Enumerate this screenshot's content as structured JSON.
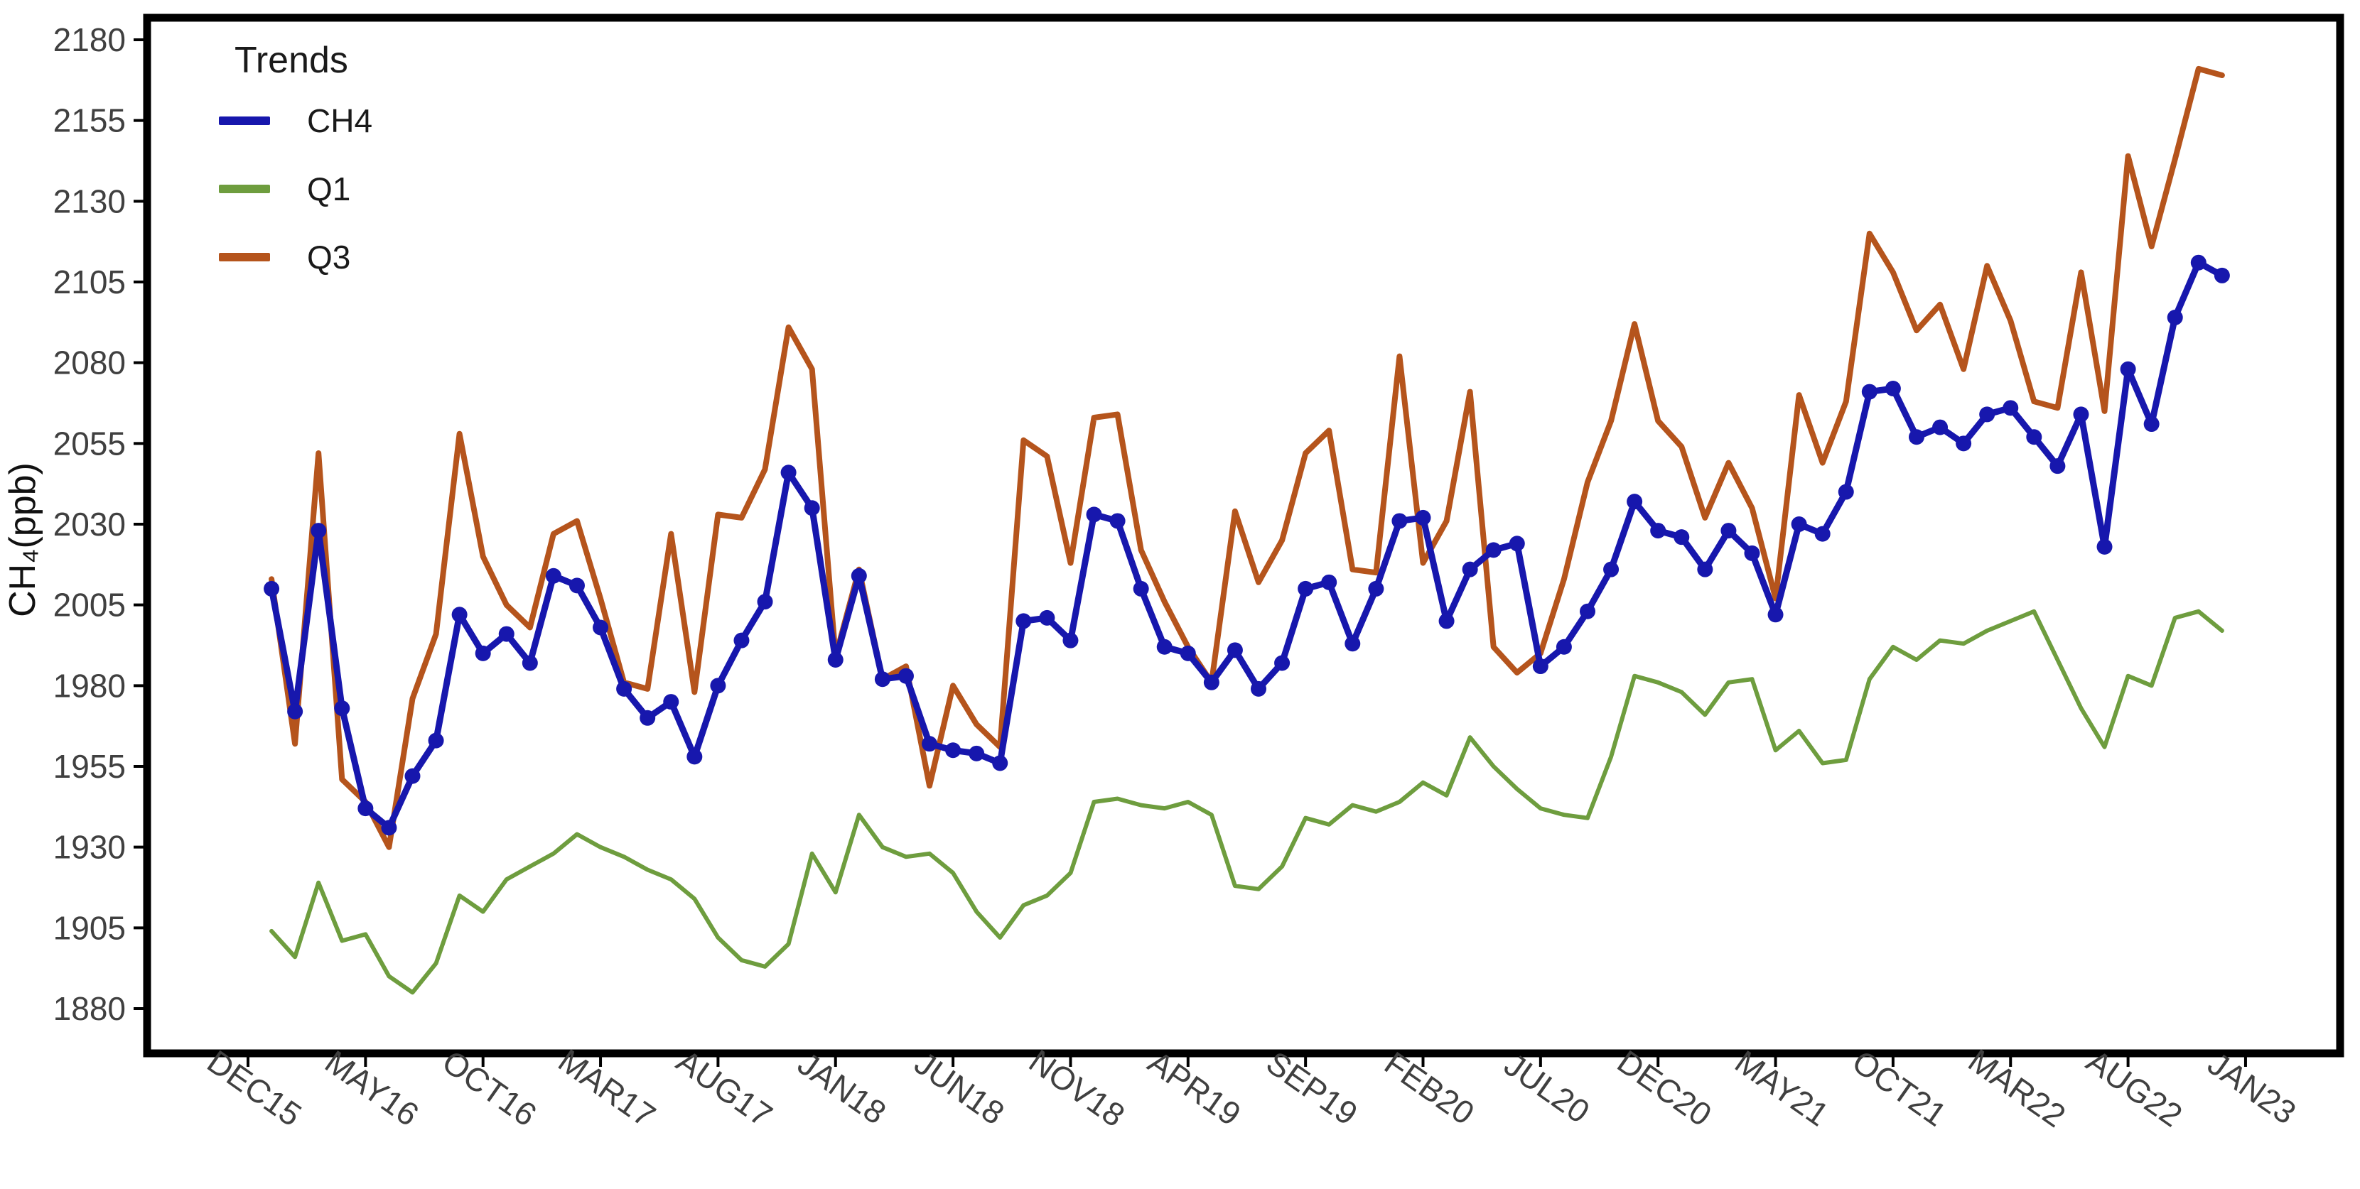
{
  "chart_data": {
    "type": "line",
    "title": "",
    "xlabel": "",
    "ylabel": "CH₄(ppb)",
    "ylim": [
      1867,
      2187
    ],
    "grid": "off",
    "legend_position": "top-left inside",
    "legend_title": "Trends",
    "y_ticks": [
      2180,
      2155,
      2130,
      2105,
      2080,
      2055,
      2030,
      2005,
      1980,
      1955,
      1930,
      1905,
      1880
    ],
    "x_axis_slots": 86,
    "x_tick_labels": [
      "DEC15",
      "MAY16",
      "OCT16",
      "MAR17",
      "AUG17",
      "JAN18",
      "JUN18",
      "NOV18",
      "APR19",
      "SEP19",
      "FEB20",
      "JUL20",
      "DEC20",
      "MAY21",
      "OCT21",
      "MAR22",
      "AUG22",
      "JAN23"
    ],
    "x_tick_slot_step": 5,
    "x": [
      "JAN16",
      "FEB16",
      "MAR16",
      "APR16",
      "MAY16",
      "JUN16",
      "JUL16",
      "AUG16",
      "SEP16",
      "OCT16",
      "NOV16",
      "DEC16",
      "JAN17",
      "FEB17",
      "MAR17",
      "APR17",
      "MAY17",
      "JUN17",
      "JUL17",
      "AUG17",
      "SEP17",
      "OCT17",
      "NOV17",
      "DEC17",
      "JAN18",
      "FEB18",
      "MAR18",
      "APR18",
      "MAY18",
      "JUN18",
      "JUL18",
      "AUG18",
      "SEP18",
      "OCT18",
      "NOV18",
      "DEC18",
      "JAN19",
      "FEB19",
      "MAR19",
      "APR19",
      "MAY19",
      "JUN19",
      "JUL19",
      "AUG19",
      "SEP19",
      "OCT19",
      "NOV19",
      "DEC19",
      "JAN20",
      "FEB20",
      "MAR20",
      "APR20",
      "MAY20",
      "JUN20",
      "JUL20",
      "AUG20",
      "SEP20",
      "OCT20",
      "NOV20",
      "DEC20",
      "JAN21",
      "FEB21",
      "MAR21",
      "APR21",
      "MAY21",
      "JUN21",
      "JUL21",
      "AUG21",
      "SEP21",
      "OCT21",
      "NOV21",
      "DEC21",
      "JAN22",
      "FEB22",
      "MAR22",
      "APR22",
      "MAY22",
      "JUN22",
      "JUL22",
      "AUG22",
      "SEP22",
      "OCT22",
      "NOV22",
      "DEC22"
    ],
    "first_data_slot": 1,
    "series": [
      {
        "name": "CH4",
        "color": "#1717ad",
        "marker": true,
        "line_width": 9,
        "values": [
          2010,
          1972,
          2028,
          1973,
          1942,
          1936,
          1952,
          1963,
          2002,
          1990,
          1996,
          1987,
          2014,
          2011,
          1998,
          1979,
          1970,
          1975,
          1958,
          1980,
          1994,
          2006,
          2046,
          2035,
          1988,
          2014,
          1982,
          1983,
          1962,
          1960,
          1959,
          1956,
          2000,
          2001,
          1994,
          2033,
          2031,
          2010,
          1992,
          1990,
          1981,
          1991,
          1979,
          1987,
          2010,
          2012,
          1993,
          2010,
          2031,
          2032,
          2000,
          2016,
          2022,
          2024,
          1986,
          1992,
          2003,
          2016,
          2037,
          2028,
          2026,
          2016,
          2028,
          2021,
          2002,
          2030,
          2027,
          2040,
          2071,
          2072,
          2057,
          2060,
          2055,
          2064,
          2066,
          2057,
          2048,
          2064,
          2023,
          2078,
          2061,
          2094,
          2111,
          2107
        ]
      },
      {
        "name": "Q1",
        "color": "#6e9d3e",
        "marker": false,
        "line_width": 6,
        "values": [
          1904,
          1896,
          1919,
          1901,
          1903,
          1890,
          1885,
          1894,
          1915,
          1910,
          1920,
          1924,
          1928,
          1934,
          1930,
          1927,
          1923,
          1920,
          1914,
          1902,
          1895,
          1893,
          1900,
          1928,
          1916,
          1940,
          1930,
          1927,
          1928,
          1922,
          1910,
          1902,
          1912,
          1915,
          1922,
          1944,
          1945,
          1943,
          1942,
          1944,
          1940,
          1918,
          1917,
          1924,
          1939,
          1937,
          1943,
          1941,
          1944,
          1950,
          1946,
          1964,
          1955,
          1948,
          1942,
          1940,
          1939,
          1958,
          1983,
          1981,
          1978,
          1971,
          1981,
          1982,
          1960,
          1966,
          1956,
          1957,
          1982,
          1992,
          1988,
          1994,
          1993,
          1997,
          2000,
          2003,
          1988,
          1973,
          1961,
          1983,
          1980,
          2001,
          2003,
          1997
        ]
      },
      {
        "name": "Q3",
        "color": "#b5541c",
        "marker": false,
        "line_width": 8,
        "values": [
          2013,
          1962,
          2052,
          1951,
          1944,
          1930,
          1976,
          1996,
          2058,
          2020,
          2005,
          1998,
          2027,
          2031,
          2007,
          1981,
          1979,
          2027,
          1978,
          2033,
          2032,
          2047,
          2091,
          2078,
          1989,
          2016,
          1982,
          1986,
          1949,
          1980,
          1968,
          1961,
          2056,
          2051,
          2018,
          2063,
          2064,
          2022,
          2006,
          1992,
          1981,
          2034,
          2012,
          2025,
          2052,
          2059,
          2016,
          2015,
          2082,
          2018,
          2031,
          2071,
          1992,
          1984,
          1990,
          2013,
          2043,
          2062,
          2092,
          2062,
          2054,
          2032,
          2049,
          2035,
          2007,
          2070,
          2049,
          2068,
          2120,
          2108,
          2090,
          2098,
          2078,
          2110,
          2093,
          2068,
          2066,
          2108,
          2065,
          2144,
          2116,
          2143,
          2171,
          2169
        ]
      }
    ]
  },
  "legend": {
    "title": "Trends",
    "items": [
      {
        "label": "CH4",
        "color": "#1717ad"
      },
      {
        "label": "Q1",
        "color": "#6e9d3e"
      },
      {
        "label": "Q3",
        "color": "#b5541c"
      }
    ]
  },
  "axes": {
    "y_title": "CH₄(ppb)",
    "tick_color": "#404040",
    "axis_color": "#000000"
  }
}
